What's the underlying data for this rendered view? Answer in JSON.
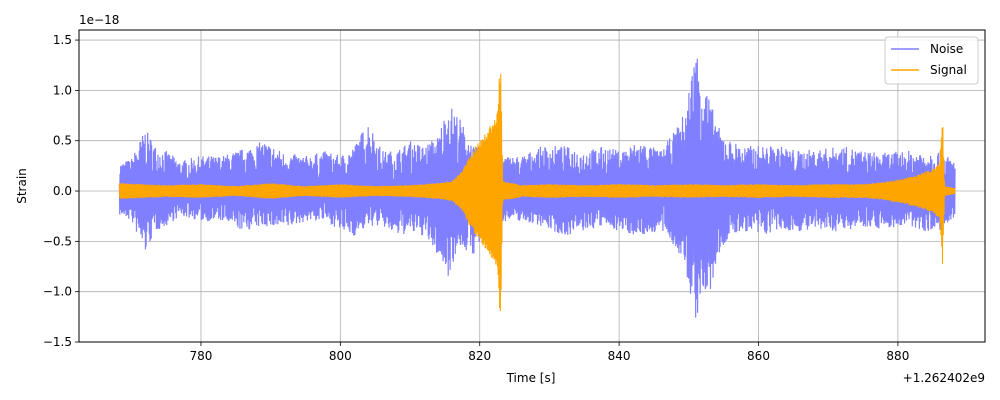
{
  "chart_data": {
    "type": "line",
    "title": "",
    "xlabel": "Time [s]",
    "ylabel": "Strain",
    "y_scale_label": "1e−18",
    "x_offset_label": "+1.262402e9",
    "xlim": [
      762.5,
      892.5
    ],
    "ylim": [
      -1.5,
      1.6
    ],
    "x_ticks": [
      780,
      800,
      820,
      840,
      860,
      880
    ],
    "y_ticks": [
      -1.5,
      -1.0,
      -0.5,
      0.0,
      0.5,
      1.0,
      1.5
    ],
    "x_tick_labels": [
      "780",
      "800",
      "820",
      "840",
      "860",
      "880"
    ],
    "y_tick_labels": [
      "−1.5",
      "−1.0",
      "−0.5",
      "0.0",
      "0.5",
      "1.0",
      "1.5"
    ],
    "grid": true,
    "legend_position": "top-right",
    "series": [
      {
        "name": "Noise",
        "color": "#7f7fff",
        "envelope": [
          [
            768.3,
            -0.24,
            0.28
          ],
          [
            770.0,
            -0.3,
            0.32
          ],
          [
            772.0,
            -0.62,
            0.62
          ],
          [
            773.5,
            -0.4,
            0.45
          ],
          [
            775.0,
            -0.35,
            0.4
          ],
          [
            777.0,
            -0.25,
            0.3
          ],
          [
            780.0,
            -0.3,
            0.35
          ],
          [
            783.0,
            -0.3,
            0.35
          ],
          [
            786.0,
            -0.4,
            0.42
          ],
          [
            789.0,
            -0.35,
            0.5
          ],
          [
            792.0,
            -0.38,
            0.38
          ],
          [
            795.0,
            -0.3,
            0.35
          ],
          [
            798.0,
            -0.3,
            0.4
          ],
          [
            800.0,
            -0.4,
            0.35
          ],
          [
            802.0,
            -0.45,
            0.45
          ],
          [
            804.0,
            -0.35,
            0.7
          ],
          [
            806.0,
            -0.35,
            0.4
          ],
          [
            808.0,
            -0.45,
            0.4
          ],
          [
            810.0,
            -0.42,
            0.5
          ],
          [
            812.0,
            -0.45,
            0.45
          ],
          [
            814.0,
            -0.65,
            0.55
          ],
          [
            815.5,
            -0.85,
            0.88
          ],
          [
            817.0,
            -0.55,
            0.75
          ],
          [
            819.0,
            -0.65,
            0.45
          ],
          [
            821.0,
            -0.4,
            0.4
          ],
          [
            823.0,
            -0.3,
            0.35
          ],
          [
            826.0,
            -0.3,
            0.35
          ],
          [
            829.0,
            -0.35,
            0.45
          ],
          [
            832.0,
            -0.45,
            0.45
          ],
          [
            835.0,
            -0.4,
            0.4
          ],
          [
            838.0,
            -0.35,
            0.45
          ],
          [
            840.0,
            -0.4,
            0.4
          ],
          [
            843.0,
            -0.45,
            0.5
          ],
          [
            846.0,
            -0.4,
            0.4
          ],
          [
            848.0,
            -0.55,
            0.6
          ],
          [
            849.5,
            -0.8,
            0.8
          ],
          [
            851.0,
            -1.3,
            1.45
          ],
          [
            852.0,
            -1.05,
            1.2
          ],
          [
            853.0,
            -1.05,
            0.9
          ],
          [
            854.5,
            -0.6,
            0.6
          ],
          [
            856.0,
            -0.45,
            0.5
          ],
          [
            858.0,
            -0.4,
            0.45
          ],
          [
            860.0,
            -0.45,
            0.45
          ],
          [
            863.0,
            -0.4,
            0.45
          ],
          [
            866.0,
            -0.4,
            0.4
          ],
          [
            869.0,
            -0.4,
            0.42
          ],
          [
            872.0,
            -0.4,
            0.45
          ],
          [
            875.0,
            -0.35,
            0.4
          ],
          [
            878.0,
            -0.38,
            0.38
          ],
          [
            881.0,
            -0.35,
            0.4
          ],
          [
            884.0,
            -0.4,
            0.4
          ],
          [
            886.0,
            -0.4,
            0.4
          ],
          [
            888.2,
            -0.3,
            0.3
          ]
        ]
      },
      {
        "name": "Signal",
        "color": "#ffa500",
        "envelope": [
          [
            768.3,
            -0.08,
            0.08
          ],
          [
            775.0,
            -0.06,
            0.06
          ],
          [
            780.0,
            -0.07,
            0.07
          ],
          [
            785.0,
            -0.05,
            0.05
          ],
          [
            790.0,
            -0.08,
            0.08
          ],
          [
            795.0,
            -0.05,
            0.05
          ],
          [
            800.0,
            -0.07,
            0.07
          ],
          [
            805.0,
            -0.05,
            0.05
          ],
          [
            810.0,
            -0.06,
            0.06
          ],
          [
            814.0,
            -0.08,
            0.08
          ],
          [
            816.0,
            -0.1,
            0.1
          ],
          [
            817.5,
            -0.2,
            0.2
          ],
          [
            818.5,
            -0.35,
            0.35
          ],
          [
            819.5,
            -0.45,
            0.45
          ],
          [
            820.5,
            -0.55,
            0.55
          ],
          [
            821.5,
            -0.65,
            0.65
          ],
          [
            822.5,
            -0.78,
            0.78
          ],
          [
            823.0,
            -1.36,
            1.35
          ],
          [
            823.3,
            -0.1,
            0.1
          ],
          [
            826.0,
            -0.06,
            0.06
          ],
          [
            830.0,
            -0.07,
            0.07
          ],
          [
            835.0,
            -0.06,
            0.06
          ],
          [
            840.0,
            -0.07,
            0.07
          ],
          [
            845.0,
            -0.06,
            0.06
          ],
          [
            850.0,
            -0.07,
            0.07
          ],
          [
            855.0,
            -0.06,
            0.06
          ],
          [
            860.0,
            -0.07,
            0.07
          ],
          [
            865.0,
            -0.06,
            0.06
          ],
          [
            870.0,
            -0.07,
            0.07
          ],
          [
            875.0,
            -0.07,
            0.07
          ],
          [
            878.0,
            -0.09,
            0.09
          ],
          [
            881.0,
            -0.13,
            0.13
          ],
          [
            883.0,
            -0.17,
            0.17
          ],
          [
            885.0,
            -0.22,
            0.22
          ],
          [
            886.0,
            -0.28,
            0.28
          ],
          [
            886.4,
            -0.75,
            0.78
          ],
          [
            886.7,
            -0.05,
            0.05
          ],
          [
            888.2,
            -0.03,
            0.03
          ]
        ]
      }
    ]
  }
}
